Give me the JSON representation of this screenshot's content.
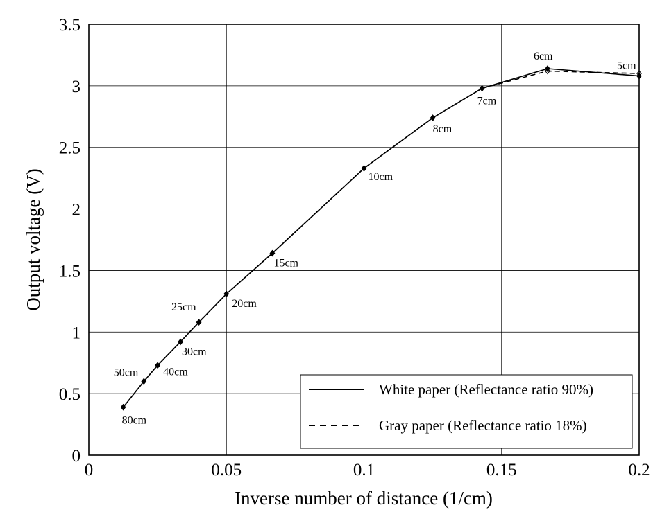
{
  "chart_data": {
    "type": "line",
    "title": "",
    "xlabel": "Inverse number of distance (1/cm)",
    "ylabel": "Output voltage (V)",
    "xlim": [
      0,
      0.2
    ],
    "ylim": [
      0,
      3.5
    ],
    "grid": true,
    "legend_position": "bottom-right",
    "x_ticks": [
      "0",
      "0.05",
      "0.1",
      "0.15",
      "0.2"
    ],
    "y_ticks": [
      "0",
      "0.5",
      "1",
      "1.5",
      "2",
      "2.5",
      "3",
      "3.5"
    ],
    "point_labels": [
      "80cm",
      "50cm",
      "40cm",
      "30cm",
      "25cm",
      "20cm",
      "15cm",
      "10cm",
      "8cm",
      "7cm",
      "6cm",
      "5cm"
    ],
    "x": [
      0.0125,
      0.02,
      0.025,
      0.0333,
      0.04,
      0.05,
      0.0667,
      0.1,
      0.125,
      0.1429,
      0.1667,
      0.2
    ],
    "series": [
      {
        "name": "White paper (Reflectance ratio 90%)",
        "line_style": "solid",
        "marker": "filled-diamond",
        "values": [
          0.39,
          0.6,
          0.73,
          0.92,
          1.08,
          1.31,
          1.64,
          2.33,
          2.74,
          2.98,
          3.14,
          3.08
        ]
      },
      {
        "name": "Gray paper (Reflectance ratio 18%)",
        "line_style": "dashed",
        "marker": "open-diamond",
        "values": [
          0.39,
          0.6,
          0.73,
          0.92,
          1.08,
          1.31,
          1.64,
          2.33,
          2.74,
          2.98,
          3.12,
          3.1
        ]
      }
    ],
    "colors": {
      "line": "#000000",
      "grid": "#000000",
      "background": "#ffffff"
    }
  }
}
